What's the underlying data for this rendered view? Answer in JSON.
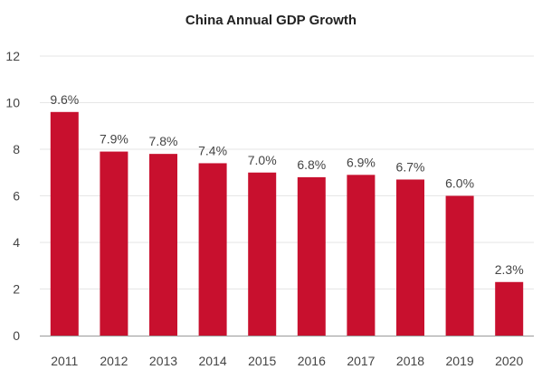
{
  "chart_data": {
    "type": "bar",
    "title": "China Annual GDP Growth",
    "categories": [
      "2011",
      "2012",
      "2013",
      "2014",
      "2015",
      "2016",
      "2017",
      "2018",
      "2019",
      "2020"
    ],
    "values": [
      9.6,
      7.9,
      7.8,
      7.4,
      7.0,
      6.8,
      6.9,
      6.7,
      6.0,
      2.3
    ],
    "data_labels": [
      "9.6%",
      "7.9%",
      "7.8%",
      "7.4%",
      "7.0%",
      "6.8%",
      "6.9%",
      "6.7%",
      "6.0%",
      "2.3%"
    ],
    "xlabel": "",
    "ylabel": "",
    "ylim": [
      0,
      12
    ],
    "yticks": [
      "0",
      "2",
      "4",
      "6",
      "8",
      "10",
      "12"
    ],
    "grid": true,
    "legend": "none",
    "bar_color": "#c8102e",
    "grid_color": "#e6e6e6",
    "axis_color": "#999999"
  }
}
